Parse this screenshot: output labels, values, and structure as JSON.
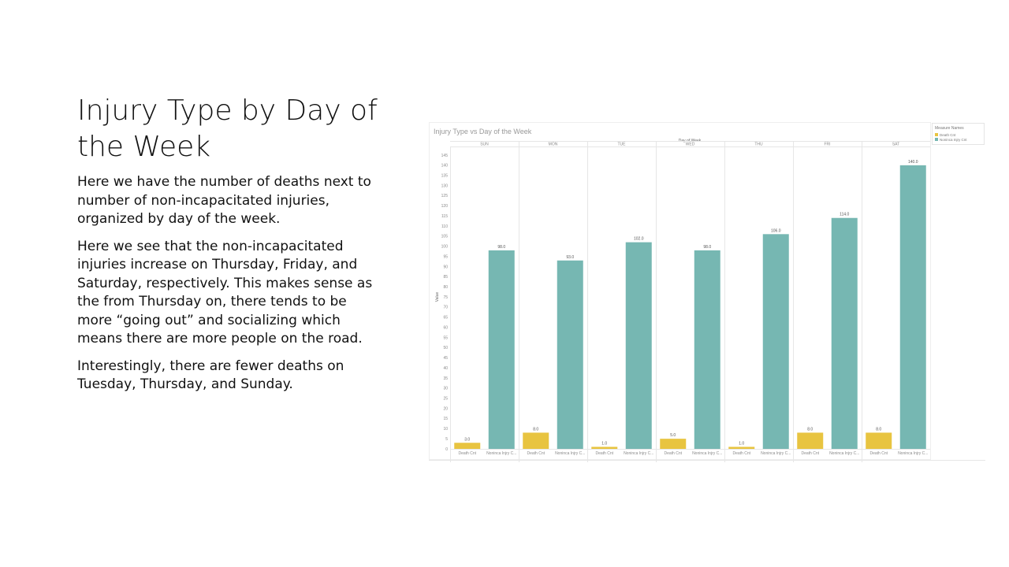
{
  "slide": {
    "title": "Injury Type by Day of the Week",
    "paragraphs": [
      "Here we have the number of deaths next to number of non-incapacitated injuries, organized by day of the week.",
      "Here we see that the non-incapacitated injuries increase on Thursday, Friday, and Saturday, respectively. This makes sense as the from Thursday on, there tends to be more “going out” and socializing which means there are more people on the road.",
      "Interestingly, there are fewer deaths on Tuesday, Thursday, and Sunday."
    ]
  },
  "colors": {
    "death": "#e8c440",
    "noninj": "#76b7b2",
    "grid": "#e6e6e6",
    "axis_text": "#8a8a8a"
  },
  "chart_data": {
    "type": "bar",
    "title": "Injury Type vs Day of the Week",
    "column_header": "Day of Week",
    "ylabel": "Value",
    "ylim": [
      0,
      145
    ],
    "yticks": [
      0,
      5,
      10,
      15,
      20,
      25,
      30,
      35,
      40,
      45,
      50,
      55,
      60,
      65,
      70,
      75,
      80,
      85,
      90,
      95,
      100,
      105,
      110,
      115,
      120,
      125,
      130,
      135,
      140,
      145
    ],
    "categories": [
      "SUN",
      "MON",
      "TUE",
      "WED",
      "THU",
      "FRI",
      "SAT"
    ],
    "bar_labels": [
      "Death Cnt",
      "Noninca Injry C..."
    ],
    "series": [
      {
        "name": "Death Cnt",
        "values": [
          3,
          8,
          1,
          5,
          1,
          8,
          8
        ],
        "labels": [
          "3.0",
          "8.0",
          "1.0",
          "5.0",
          "1.0",
          "8.0",
          "8.0"
        ]
      },
      {
        "name": "Noninca Injry Cnt",
        "values": [
          98,
          93,
          102,
          98,
          106,
          114,
          140
        ],
        "labels": [
          "98.0",
          "93.0",
          "102.0",
          "98.0",
          "106.0",
          "114.0",
          "140.0"
        ]
      }
    ],
    "legend": {
      "title": "Measure Names",
      "position": "top-right",
      "items": [
        "Death Cnt",
        "Noninca Injry Cnt"
      ]
    }
  }
}
